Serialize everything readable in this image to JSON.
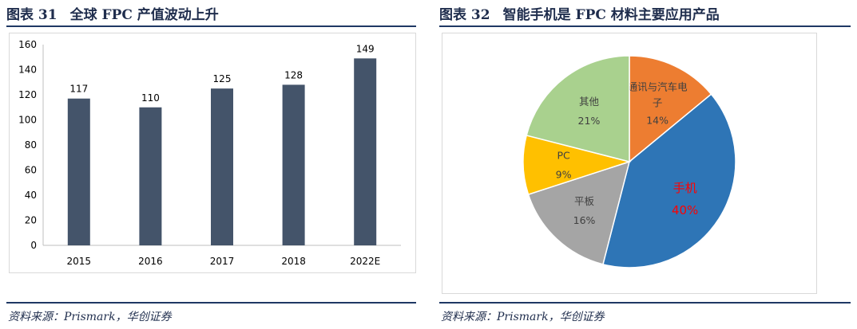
{
  "left": {
    "number": "图表 31",
    "title": "全球 FPC 产值波动上升",
    "source": "资料来源：Prismark，华创证券"
  },
  "right": {
    "number": "图表 32",
    "title": "智能手机是 FPC 材料主要应用产品",
    "source": "资料来源：Prismark，华创证券"
  },
  "chart_data": [
    {
      "type": "bar",
      "categories": [
        "2015",
        "2016",
        "2017",
        "2018",
        "2022E"
      ],
      "values": [
        117,
        110,
        125,
        128,
        149
      ],
      "data_labels": [
        "117",
        "110",
        "125",
        "128",
        "149"
      ],
      "ylim": [
        0,
        160
      ],
      "yticks": [
        0,
        20,
        40,
        60,
        80,
        100,
        120,
        140,
        160
      ],
      "grid": false,
      "bar_color": "#44546a"
    },
    {
      "type": "pie",
      "slices": [
        {
          "label": "通讯与汽车电子",
          "value": 14,
          "pct": "14%",
          "color": "#ed7d31",
          "text_color": "#404040"
        },
        {
          "label": "手机",
          "value": 40,
          "pct": "40%",
          "color": "#2e75b6",
          "text_color": "#ff0000"
        },
        {
          "label": "平板",
          "value": 16,
          "pct": "16%",
          "color": "#a5a5a5",
          "text_color": "#404040"
        },
        {
          "label": "PC",
          "value": 9,
          "pct": "9%",
          "color": "#ffc000",
          "text_color": "#404040"
        },
        {
          "label": "其他",
          "value": 21,
          "pct": "21%",
          "color": "#a9d18e",
          "text_color": "#404040"
        }
      ],
      "start_angle_deg": 0,
      "direction": "clockwise"
    }
  ]
}
